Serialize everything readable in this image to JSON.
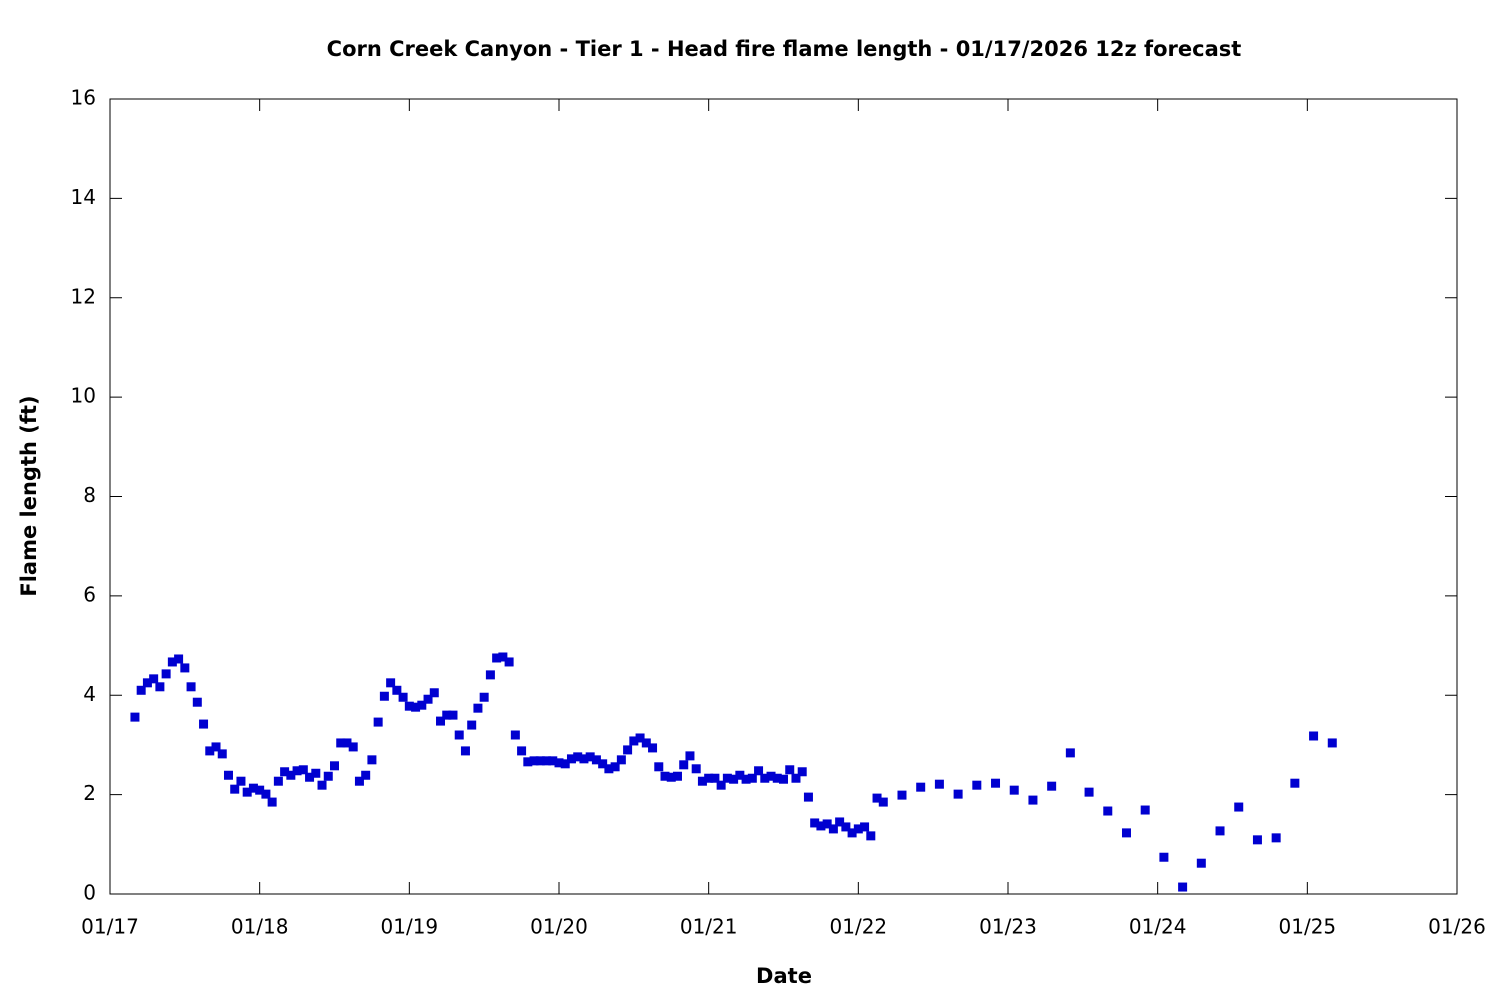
{
  "chart_data": {
    "type": "scatter",
    "title": "Corn Creek Canyon - Tier 1 - Head fire flame length - 01/17/2026 12z forecast",
    "x_label": "Date",
    "y_label": "Flame length (ft)",
    "xlim": [
      0,
      216
    ],
    "xticks": [
      {
        "value": 0,
        "label": "01/17"
      },
      {
        "value": 24,
        "label": "01/18"
      },
      {
        "value": 48,
        "label": "01/19"
      },
      {
        "value": 72,
        "label": "01/20"
      },
      {
        "value": 96,
        "label": "01/21"
      },
      {
        "value": 120,
        "label": "01/22"
      },
      {
        "value": 144,
        "label": "01/23"
      },
      {
        "value": 168,
        "label": "01/24"
      },
      {
        "value": 192,
        "label": "01/25"
      },
      {
        "value": 216,
        "label": "01/26"
      }
    ],
    "ylim": [
      0,
      16
    ],
    "yticks": [
      0,
      2,
      4,
      6,
      8,
      10,
      12,
      14,
      16
    ],
    "series": [
      {
        "color": "#0000d0",
        "x": [
          4,
          5,
          6,
          7,
          8,
          9,
          10,
          11,
          12,
          13,
          14,
          15,
          16,
          17,
          18,
          19,
          20,
          21,
          22,
          23,
          24,
          25,
          26,
          27,
          28,
          29,
          30,
          31,
          32,
          33,
          34,
          35,
          36,
          37,
          38,
          39,
          40,
          41,
          42,
          43,
          44,
          45,
          46,
          47,
          48,
          49,
          50,
          51,
          52,
          53,
          54,
          55,
          56,
          57,
          58,
          59,
          60,
          61,
          62,
          63,
          64,
          65,
          66,
          67,
          68,
          69,
          70,
          71,
          72,
          73,
          74,
          75,
          76,
          77,
          78,
          79,
          80,
          81,
          82,
          83,
          84,
          85,
          86,
          87,
          88,
          89,
          90,
          91,
          92,
          93,
          94,
          95,
          96,
          97,
          98,
          99,
          100,
          101,
          102,
          103,
          104,
          105,
          106,
          107,
          108,
          109,
          110,
          111,
          112,
          113,
          114,
          115,
          116,
          117,
          118,
          119,
          120,
          121,
          122,
          123,
          124,
          127,
          130,
          133,
          136,
          139,
          142,
          145,
          148,
          151,
          154,
          157,
          160,
          163,
          166,
          169,
          172,
          175,
          178,
          181,
          184,
          187,
          190,
          193,
          196
        ],
        "values": [
          3.56,
          4.1,
          4.25,
          4.33,
          4.17,
          4.43,
          4.67,
          4.73,
          4.55,
          4.17,
          3.86,
          3.42,
          2.88,
          2.96,
          2.82,
          2.39,
          2.11,
          2.27,
          2.05,
          2.13,
          2.09,
          2.01,
          1.85,
          2.27,
          2.46,
          2.39,
          2.48,
          2.5,
          2.35,
          2.43,
          2.19,
          2.37,
          2.58,
          3.04,
          3.04,
          2.96,
          2.27,
          2.39,
          2.7,
          3.46,
          3.98,
          4.25,
          4.1,
          3.96,
          3.78,
          3.76,
          3.8,
          3.92,
          4.05,
          3.48,
          3.6,
          3.6,
          3.2,
          2.88,
          3.4,
          3.74,
          3.96,
          4.41,
          4.75,
          4.77,
          4.67,
          3.2,
          2.88,
          2.66,
          2.68,
          2.68,
          2.68,
          2.68,
          2.64,
          2.62,
          2.72,
          2.76,
          2.72,
          2.76,
          2.7,
          2.62,
          2.52,
          2.56,
          2.7,
          2.9,
          3.08,
          3.14,
          3.04,
          2.94,
          2.56,
          2.37,
          2.35,
          2.37,
          2.6,
          2.78,
          2.52,
          2.27,
          2.33,
          2.33,
          2.19,
          2.33,
          2.31,
          2.39,
          2.31,
          2.33,
          2.48,
          2.33,
          2.37,
          2.33,
          2.31,
          2.5,
          2.33,
          2.46,
          1.95,
          1.43,
          1.37,
          1.41,
          1.31,
          1.45,
          1.35,
          1.23,
          1.31,
          1.35,
          1.17,
          1.93,
          1.85,
          1.99,
          2.15,
          2.21,
          2.01,
          2.19,
          2.23,
          2.09,
          1.89,
          2.17,
          2.84,
          2.05,
          1.67,
          1.23,
          1.69,
          0.74,
          0.14,
          0.62,
          1.27,
          1.75,
          1.09,
          1.13,
          2.23,
          3.18,
          3.04
        ]
      }
    ]
  }
}
